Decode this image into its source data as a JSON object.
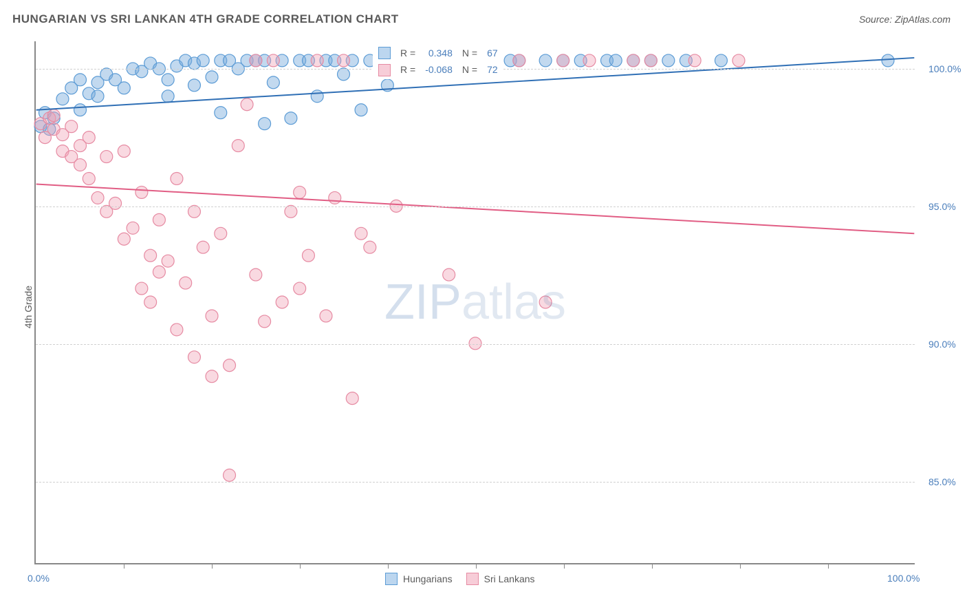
{
  "title": "HUNGARIAN VS SRI LANKAN 4TH GRADE CORRELATION CHART",
  "source": "Source: ZipAtlas.com",
  "ylabel": "4th Grade",
  "watermark_zip": "ZIP",
  "watermark_atlas": "atlas",
  "chart": {
    "type": "scatter",
    "background_color": "#ffffff",
    "grid_color": "#d0d0d0",
    "axis_color": "#888888",
    "text_color": "#5a5a5a",
    "value_color": "#4a7ebb",
    "xlim": [
      0,
      100
    ],
    "ylim": [
      82,
      101
    ],
    "xticks_minor": [
      10,
      20,
      30,
      40,
      50,
      60,
      70,
      80,
      90
    ],
    "xaxis_labels": [
      {
        "x": 0,
        "label": "0.0%"
      },
      {
        "x": 100,
        "label": "100.0%"
      }
    ],
    "yticks": [
      {
        "y": 85,
        "label": "85.0%"
      },
      {
        "y": 90,
        "label": "90.0%"
      },
      {
        "y": 95,
        "label": "95.0%"
      },
      {
        "y": 100,
        "label": "100.0%"
      }
    ],
    "marker_radius": 9,
    "marker_stroke_width": 1.2,
    "line_width": 2,
    "series": [
      {
        "name": "Hungarians",
        "fill": "rgba(120,170,220,0.45)",
        "stroke": "#5b9bd5",
        "line_color": "#2f6fb5",
        "swatch_fill": "#bcd6ef",
        "swatch_border": "#5b9bd5",
        "R": "0.348",
        "N": "67",
        "trendline": {
          "x1": 0,
          "y1": 98.5,
          "x2": 100,
          "y2": 100.4
        },
        "points": [
          [
            0.5,
            97.9
          ],
          [
            1,
            98.4
          ],
          [
            1.5,
            97.8
          ],
          [
            2,
            98.2
          ],
          [
            3,
            98.9
          ],
          [
            4,
            99.3
          ],
          [
            5,
            99.6
          ],
          [
            5,
            98.5
          ],
          [
            6,
            99.1
          ],
          [
            7,
            99.5
          ],
          [
            7,
            99.0
          ],
          [
            8,
            99.8
          ],
          [
            9,
            99.6
          ],
          [
            10,
            99.3
          ],
          [
            11,
            100.0
          ],
          [
            12,
            99.9
          ],
          [
            13,
            100.2
          ],
          [
            14,
            100.0
          ],
          [
            15,
            99.6
          ],
          [
            15,
            99.0
          ],
          [
            16,
            100.1
          ],
          [
            17,
            100.3
          ],
          [
            18,
            99.4
          ],
          [
            18,
            100.2
          ],
          [
            19,
            100.3
          ],
          [
            20,
            99.7
          ],
          [
            21,
            100.3
          ],
          [
            21,
            98.4
          ],
          [
            22,
            100.3
          ],
          [
            23,
            100.0
          ],
          [
            24,
            100.3
          ],
          [
            25,
            100.3
          ],
          [
            26,
            100.3
          ],
          [
            26,
            98.0
          ],
          [
            27,
            99.5
          ],
          [
            28,
            100.3
          ],
          [
            29,
            98.2
          ],
          [
            30,
            100.3
          ],
          [
            31,
            100.3
          ],
          [
            32,
            99.0
          ],
          [
            33,
            100.3
          ],
          [
            34,
            100.3
          ],
          [
            35,
            99.8
          ],
          [
            36,
            100.3
          ],
          [
            37,
            98.5
          ],
          [
            38,
            100.3
          ],
          [
            40,
            99.4
          ],
          [
            41,
            100.3
          ],
          [
            43,
            100.3
          ],
          [
            44,
            100.3
          ],
          [
            45,
            100.3
          ],
          [
            48,
            100.3
          ],
          [
            50,
            100.3
          ],
          [
            52,
            100.3
          ],
          [
            54,
            100.3
          ],
          [
            55,
            100.3
          ],
          [
            58,
            100.3
          ],
          [
            60,
            100.3
          ],
          [
            62,
            100.3
          ],
          [
            65,
            100.3
          ],
          [
            66,
            100.3
          ],
          [
            68,
            100.3
          ],
          [
            70,
            100.3
          ],
          [
            72,
            100.3
          ],
          [
            74,
            100.3
          ],
          [
            78,
            100.3
          ],
          [
            97,
            100.3
          ]
        ]
      },
      {
        "name": "Sri Lankans",
        "fill": "rgba(240,160,180,0.40)",
        "stroke": "#e68aa2",
        "line_color": "#e15d84",
        "swatch_fill": "#f7cdd8",
        "swatch_border": "#e68aa2",
        "R": "-0.068",
        "N": "72",
        "trendline": {
          "x1": 0,
          "y1": 95.8,
          "x2": 100,
          "y2": 94.0
        },
        "points": [
          [
            0.5,
            98.0
          ],
          [
            1,
            97.5
          ],
          [
            1.5,
            98.2
          ],
          [
            2,
            97.8
          ],
          [
            2,
            98.3
          ],
          [
            3,
            97.0
          ],
          [
            3,
            97.6
          ],
          [
            4,
            96.8
          ],
          [
            4,
            97.9
          ],
          [
            5,
            96.5
          ],
          [
            5,
            97.2
          ],
          [
            6,
            96.0
          ],
          [
            6,
            97.5
          ],
          [
            7,
            95.3
          ],
          [
            8,
            96.8
          ],
          [
            8,
            94.8
          ],
          [
            9,
            95.1
          ],
          [
            10,
            93.8
          ],
          [
            10,
            97.0
          ],
          [
            11,
            94.2
          ],
          [
            12,
            92.0
          ],
          [
            12,
            95.5
          ],
          [
            13,
            93.2
          ],
          [
            13,
            91.5
          ],
          [
            14,
            94.5
          ],
          [
            14,
            92.6
          ],
          [
            15,
            93.0
          ],
          [
            16,
            96.0
          ],
          [
            16,
            90.5
          ],
          [
            17,
            92.2
          ],
          [
            18,
            94.8
          ],
          [
            18,
            89.5
          ],
          [
            19,
            93.5
          ],
          [
            20,
            91.0
          ],
          [
            20,
            88.8
          ],
          [
            21,
            94.0
          ],
          [
            22,
            89.2
          ],
          [
            22,
            85.2
          ],
          [
            23,
            97.2
          ],
          [
            24,
            98.7
          ],
          [
            25,
            92.5
          ],
          [
            25,
            100.3
          ],
          [
            26,
            90.8
          ],
          [
            27,
            100.3
          ],
          [
            28,
            91.5
          ],
          [
            29,
            94.8
          ],
          [
            30,
            92.0
          ],
          [
            30,
            95.5
          ],
          [
            31,
            93.2
          ],
          [
            32,
            100.3
          ],
          [
            33,
            91.0
          ],
          [
            34,
            95.3
          ],
          [
            35,
            100.3
          ],
          [
            36,
            88.0
          ],
          [
            37,
            94.0
          ],
          [
            38,
            93.5
          ],
          [
            40,
            100.3
          ],
          [
            41,
            95.0
          ],
          [
            42,
            100.3
          ],
          [
            45,
            100.3
          ],
          [
            47,
            92.5
          ],
          [
            48,
            100.3
          ],
          [
            50,
            90.0
          ],
          [
            52,
            100.3
          ],
          [
            55,
            100.3
          ],
          [
            58,
            91.5
          ],
          [
            60,
            100.3
          ],
          [
            63,
            100.3
          ],
          [
            68,
            100.3
          ],
          [
            70,
            100.3
          ],
          [
            75,
            100.3
          ],
          [
            80,
            100.3
          ]
        ]
      }
    ]
  },
  "legend_top_labels": {
    "R_prefix": "R =",
    "N_prefix": "N ="
  },
  "legend_bottom": [
    "Hungarians",
    "Sri Lankans"
  ]
}
